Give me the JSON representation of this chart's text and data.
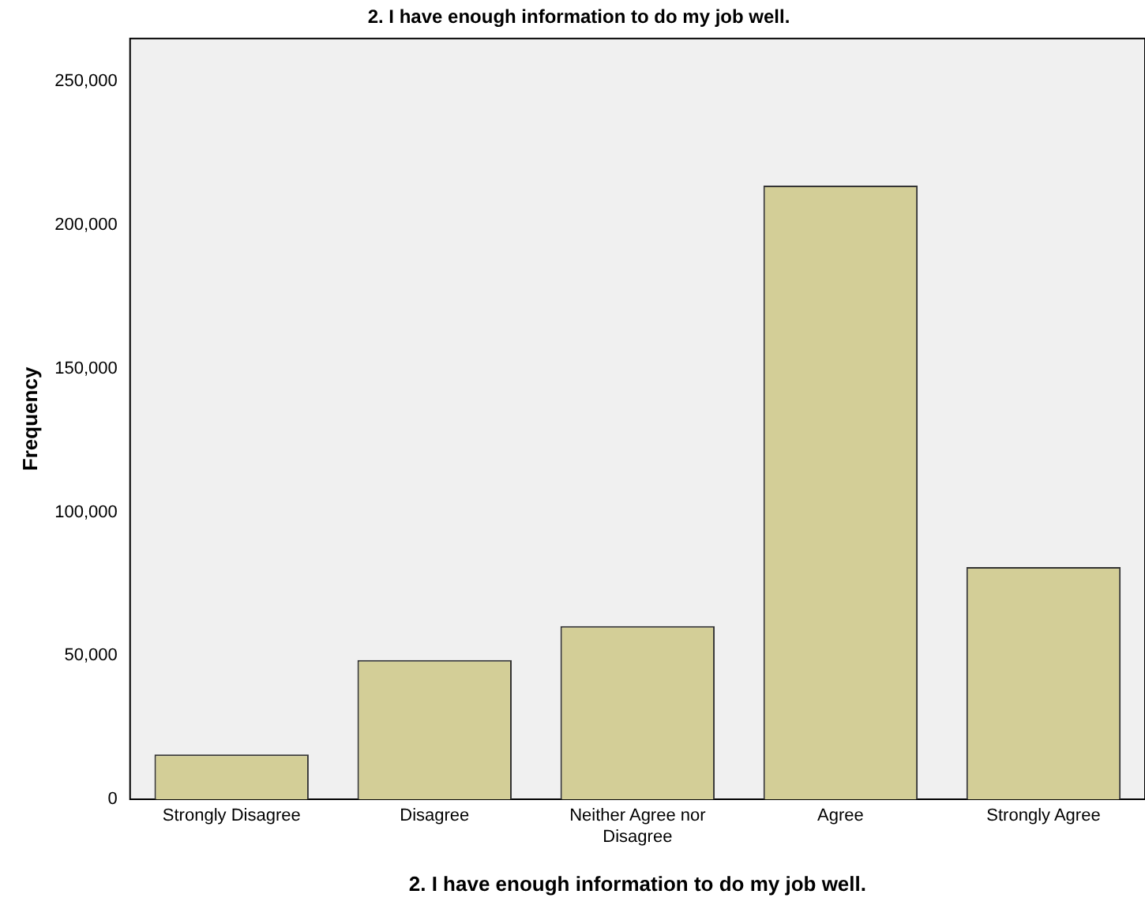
{
  "chart_data": {
    "type": "bar",
    "title": "2. I have enough information to do my job well.",
    "xlabel": "2. I have enough information to do my job well.",
    "ylabel": "Frequency",
    "categories": [
      "Strongly Disagree",
      "Disagree",
      "Neither Agree nor Disagree",
      "Agree",
      "Strongly Agree"
    ],
    "values": [
      15600,
      48500,
      60300,
      213800,
      80900
    ],
    "color": "#d3ce97",
    "ylim": [
      0,
      265000
    ],
    "yticks": [
      0,
      {
        "value": 50000,
        "label": "50,000"
      },
      {
        "value": 100000,
        "label": "100,000"
      },
      {
        "value": 150000,
        "label": "150,000"
      },
      {
        "value": 200000,
        "label": "200,000"
      },
      {
        "value": 250000,
        "label": "250,000"
      }
    ],
    "grid": false,
    "legend": false
  }
}
